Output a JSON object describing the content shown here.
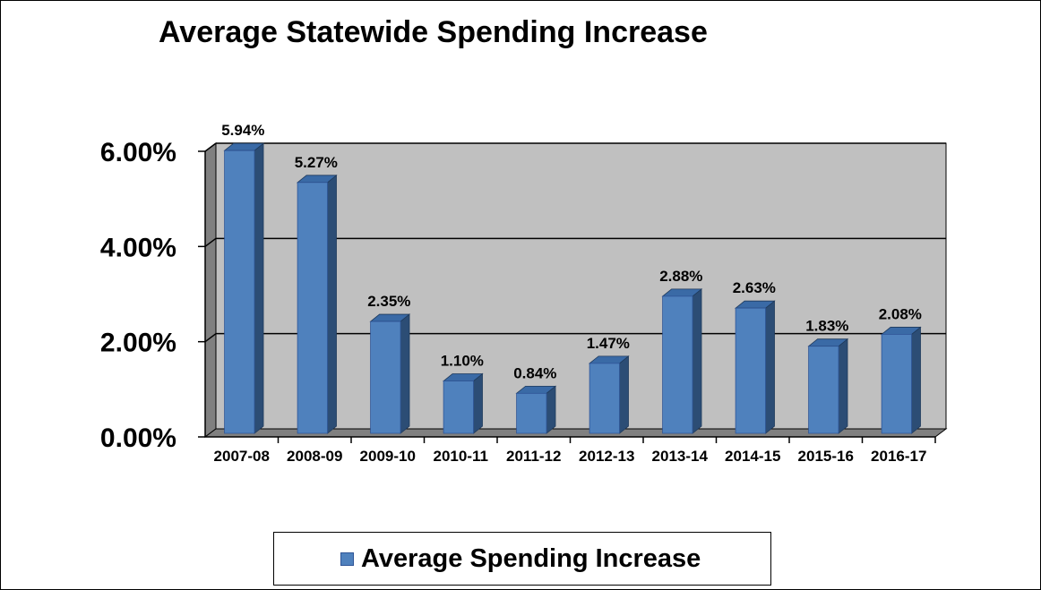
{
  "chart_data": {
    "type": "bar",
    "title": "Average Statewide Spending Increase",
    "categories": [
      "2007-08",
      "2008-09",
      "2009-10",
      "2010-11",
      "2011-12",
      "2012-13",
      "2013-14",
      "2014-15",
      "2015-16",
      "2016-17"
    ],
    "series": [
      {
        "name": "Average Spending Increase",
        "values": [
          5.94,
          5.27,
          2.35,
          1.1,
          0.84,
          1.47,
          2.88,
          2.63,
          1.83,
          2.08
        ],
        "data_labels": [
          "5.94%",
          "5.27%",
          "2.35%",
          "1.10%",
          "0.84%",
          "1.47%",
          "2.88%",
          "2.63%",
          "1.83%",
          "2.08%"
        ],
        "color": "#4f81bd"
      }
    ],
    "y_ticks": [
      0,
      2,
      4,
      6
    ],
    "y_tick_labels": [
      "0.00%",
      "2.00%",
      "4.00%",
      "6.00%"
    ],
    "ylim": [
      0,
      6
    ],
    "xlabel": "",
    "ylabel": "",
    "grid": true,
    "legend_position": "bottom",
    "style": "3d-column",
    "colors": {
      "bar_front": "#4f81bd",
      "bar_side": "#2c4d75",
      "bar_top": "#3a6aa6",
      "plot_back_wall": "#c0c0c0",
      "plot_side_wall": "#808080",
      "plot_floor": "#808080"
    }
  }
}
